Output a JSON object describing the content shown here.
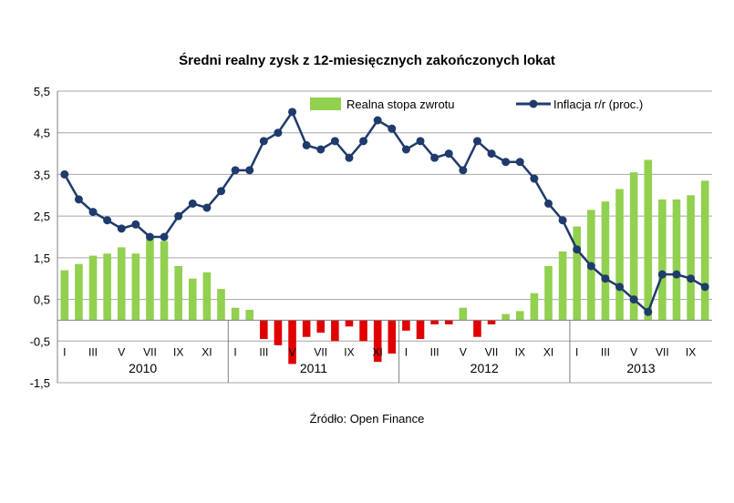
{
  "title": "Średni realny zysk z 12-miesięcznych  zakończonych  lokat",
  "source": "Źródło: Open Finance",
  "chart_data": {
    "type": "bar+line",
    "ylim": [
      -1.5,
      5.5
    ],
    "yticks": [
      "-1,5",
      "-0,5",
      "0,5",
      "1,5",
      "2,5",
      "3,5",
      "4,5",
      "5,5"
    ],
    "ytick_values": [
      -1.5,
      -0.5,
      0.5,
      1.5,
      2.5,
      3.5,
      4.5,
      5.5
    ],
    "years": [
      {
        "label": "2010",
        "months": 12
      },
      {
        "label": "2011",
        "months": 12
      },
      {
        "label": "2012",
        "months": 12
      },
      {
        "label": "2013",
        "months": 10
      }
    ],
    "month_labels": [
      "I",
      "",
      "III",
      "",
      "V",
      "",
      "VII",
      "",
      "IX",
      "",
      "XI",
      ""
    ],
    "series": [
      {
        "name": "Realna stopa zwrotu",
        "type": "bar",
        "pos_color": "#92d050",
        "neg_color": "#e00000",
        "values": [
          1.2,
          1.35,
          1.55,
          1.6,
          1.75,
          1.6,
          1.95,
          1.9,
          1.3,
          1.0,
          1.15,
          0.75,
          0.3,
          0.25,
          -0.45,
          -0.6,
          -1.05,
          -0.4,
          -0.3,
          -0.5,
          -0.15,
          -0.5,
          -1.0,
          -0.8,
          -0.25,
          -0.45,
          -0.1,
          -0.1,
          0.3,
          -0.4,
          -0.1,
          0.15,
          0.22,
          0.65,
          1.3,
          1.65,
          2.25,
          2.65,
          2.85,
          3.15,
          3.55,
          3.85,
          2.9,
          2.9,
          3.0,
          3.35
        ]
      },
      {
        "name": "Inflacja r/r (proc.)",
        "type": "line",
        "color": "#1f3b6b",
        "values": [
          3.5,
          2.9,
          2.6,
          2.4,
          2.2,
          2.3,
          2.0,
          2.0,
          2.5,
          2.8,
          2.7,
          3.1,
          3.6,
          3.6,
          4.3,
          4.5,
          5.0,
          4.2,
          4.1,
          4.3,
          3.9,
          4.3,
          4.8,
          4.6,
          4.1,
          4.3,
          3.9,
          4.0,
          3.6,
          4.3,
          4.0,
          3.8,
          3.8,
          3.4,
          2.8,
          2.4,
          1.7,
          1.3,
          1.0,
          0.8,
          0.5,
          0.2,
          1.1,
          1.1,
          1.0,
          0.8
        ]
      }
    ],
    "legend": "top-right",
    "grid": true
  }
}
